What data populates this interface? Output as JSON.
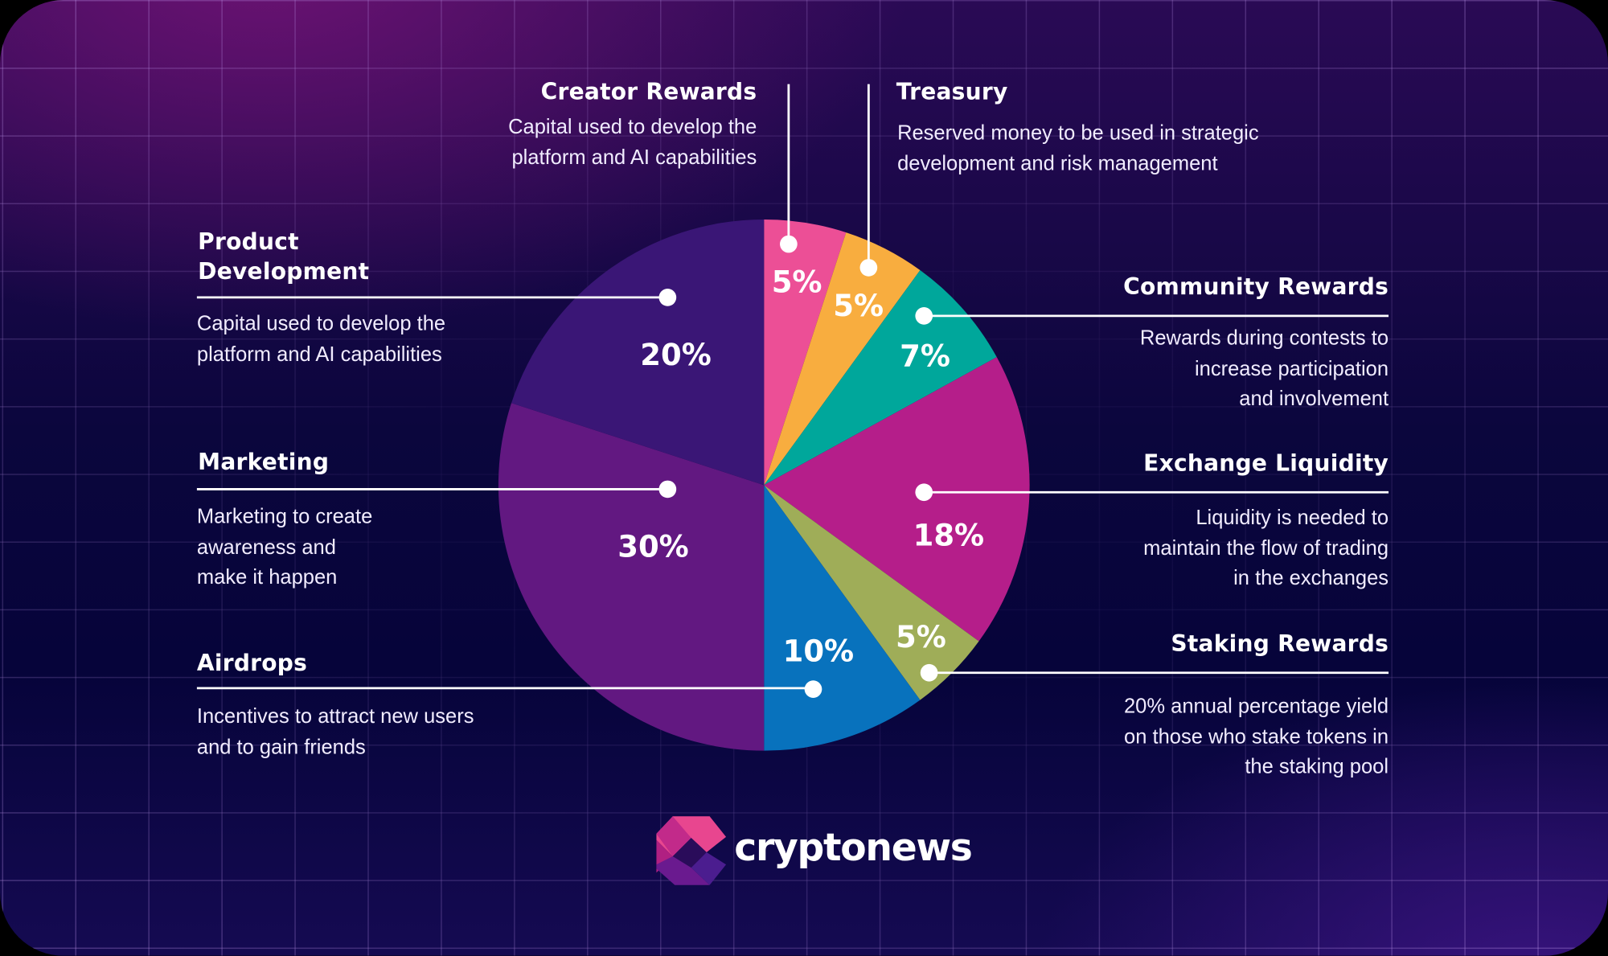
{
  "chart_data": {
    "type": "pie",
    "title": "",
    "start_angle": "12 o'clock, clockwise",
    "categories": [
      "Creator Rewards",
      "Treasury",
      "Community Rewards",
      "Exchange Liquidity",
      "Staking Rewards",
      "Airdrops",
      "Marketing",
      "Product Development"
    ],
    "values": [
      5,
      5,
      7,
      18,
      5,
      10,
      30,
      20
    ],
    "labels": [
      "5%",
      "5%",
      "7%",
      "18%",
      "5%",
      "10%",
      "30%",
      "20%"
    ],
    "colors": [
      "#ec4f96",
      "#f8ad3f",
      "#00a79b",
      "#b51e8a",
      "#9fad58",
      "#0872bd",
      "#621881",
      "#3a1676"
    ],
    "legend": "callout annotations with lines to each slice",
    "descriptions": {
      "Creator Rewards": "Capital used to develop the platform and AI capabilities",
      "Treasury": "Reserved money to be used in strategic development and risk management",
      "Community Rewards": "Rewards during contests to increase participation and involvement",
      "Exchange Liquidity": "Liquidity is needed to maintain the flow of trading in the exchanges",
      "Staking Rewards": "20% annual percentage yield on those who stake tokens in the staking pool",
      "Airdrops": "Incentives to attract new users and to gain friends",
      "Marketing": "Marketing to create awareness and make it happen",
      "Product Development": "Capital used to develop the platform and AI capabilities"
    }
  },
  "callouts": {
    "creator": {
      "title": "Creator Rewards",
      "lines": [
        "Capital used to develop the",
        "platform and AI capabilities"
      ],
      "pct": "5%"
    },
    "treasury": {
      "title": "Treasury",
      "lines": [
        "Reserved money to be used in strategic",
        "development and risk management"
      ],
      "pct": "5%"
    },
    "community": {
      "title": "Community Rewards",
      "lines": [
        "Rewards during contests to",
        "increase participation",
        "and involvement"
      ],
      "pct": "7%"
    },
    "exchange": {
      "title": "Exchange Liquidity",
      "lines": [
        "Liquidity is needed to",
        "maintain the flow of trading",
        "in the exchanges"
      ],
      "pct": "18%"
    },
    "staking": {
      "title": "Staking Rewards",
      "lines": [
        "20% annual percentage yield",
        "on those who stake tokens in",
        "the staking pool"
      ],
      "pct": "5%"
    },
    "airdrops": {
      "title": "Airdrops",
      "lines": [
        "Incentives to attract new users",
        "and to gain friends"
      ],
      "pct": "10%"
    },
    "marketing": {
      "title": "Marketing",
      "lines": [
        "Marketing to create",
        "awareness and",
        "make it happen"
      ],
      "pct": "30%"
    },
    "product": {
      "title_lines": [
        "Product",
        "Development"
      ],
      "lines": [
        "Capital used to develop the",
        "platform and AI capabilities"
      ],
      "pct": "20%"
    }
  },
  "brand": {
    "name": "cryptonews"
  }
}
